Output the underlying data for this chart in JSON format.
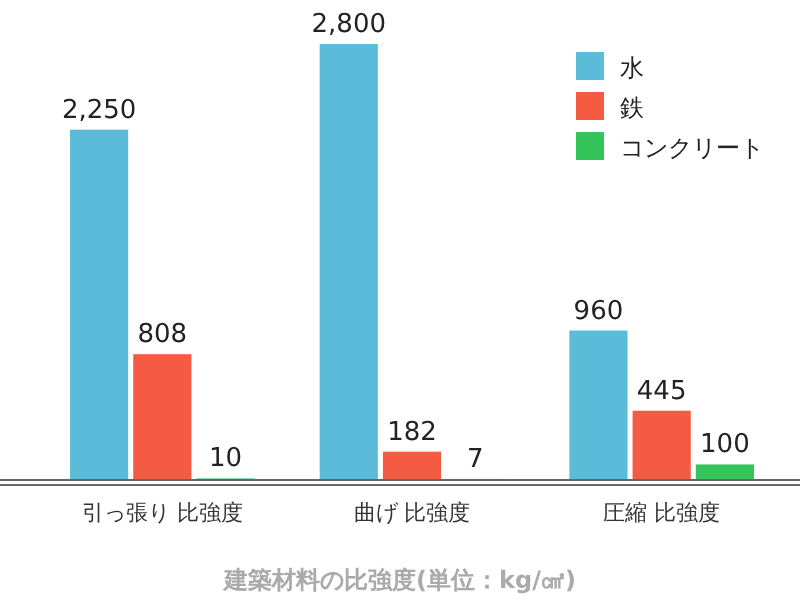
{
  "chart_data": {
    "type": "bar",
    "title": "建築材料の比強度(単位：kg/㎠)",
    "categories": [
      "引っ張り 比強度",
      "曲げ 比強度",
      "圧縮 比強度"
    ],
    "series": [
      {
        "name": "水",
        "color": "#5bbcd9",
        "values": [
          2250,
          2800,
          960
        ],
        "value_labels": [
          "2,250",
          "2,800",
          "960"
        ]
      },
      {
        "name": "鉄",
        "color": "#f55a42",
        "values": [
          808,
          182,
          445
        ],
        "value_labels": [
          "808",
          "182",
          "445"
        ]
      },
      {
        "name": "コンクリート",
        "color": "#35c45a",
        "values": [
          10,
          7,
          100
        ],
        "value_labels": [
          "10",
          "7",
          "100"
        ]
      }
    ],
    "legend": "top right"
  }
}
